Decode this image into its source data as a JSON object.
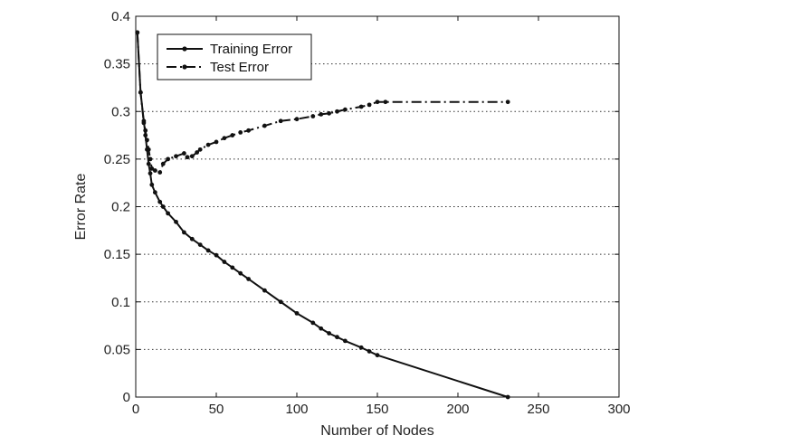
{
  "chart_data": {
    "type": "line",
    "xlabel": "Number of Nodes",
    "ylabel": "Error Rate",
    "xlim": [
      0,
      300
    ],
    "ylim": [
      0,
      0.4
    ],
    "xticks": [
      0,
      50,
      100,
      150,
      200,
      250,
      300
    ],
    "yticks": [
      0,
      0.05,
      0.1,
      0.15,
      0.2,
      0.25,
      0.3,
      0.35,
      0.4
    ],
    "xtick_labels": [
      "0",
      "50",
      "100",
      "150",
      "200",
      "250",
      "300"
    ],
    "ytick_labels": [
      "0",
      "0.05",
      "0.1",
      "0.15",
      "0.2",
      "0.25",
      "0.3",
      "0.35",
      "0.4"
    ],
    "grid": "horizontal dotted",
    "legend_position": "top-left",
    "series": [
      {
        "name": "Training Error",
        "style": "solid",
        "color": "#111111",
        "x": [
          1,
          3,
          5,
          6,
          7,
          8,
          9,
          10,
          12,
          15,
          17,
          20,
          25,
          30,
          35,
          40,
          45,
          50,
          55,
          60,
          65,
          70,
          80,
          90,
          100,
          110,
          115,
          120,
          125,
          130,
          140,
          145,
          150,
          231
        ],
        "y": [
          0.383,
          0.32,
          0.29,
          0.275,
          0.26,
          0.245,
          0.235,
          0.223,
          0.215,
          0.205,
          0.2,
          0.193,
          0.184,
          0.173,
          0.166,
          0.16,
          0.154,
          0.149,
          0.142,
          0.136,
          0.13,
          0.124,
          0.112,
          0.1,
          0.088,
          0.078,
          0.072,
          0.067,
          0.063,
          0.059,
          0.052,
          0.048,
          0.044,
          0.0
        ]
      },
      {
        "name": "Test Error",
        "style": "dash-dot",
        "color": "#111111",
        "x": [
          1,
          3,
          5,
          6,
          7,
          8,
          9,
          10,
          12,
          15,
          17,
          20,
          25,
          30,
          32,
          35,
          38,
          40,
          45,
          50,
          55,
          60,
          65,
          70,
          80,
          90,
          100,
          110,
          115,
          120,
          125,
          130,
          140,
          145,
          150,
          155,
          231
        ],
        "y": [
          0.383,
          0.32,
          0.288,
          0.28,
          0.27,
          0.26,
          0.25,
          0.24,
          0.238,
          0.236,
          0.245,
          0.25,
          0.253,
          0.256,
          0.252,
          0.253,
          0.257,
          0.26,
          0.265,
          0.268,
          0.272,
          0.275,
          0.278,
          0.28,
          0.285,
          0.29,
          0.292,
          0.295,
          0.297,
          0.298,
          0.3,
          0.302,
          0.305,
          0.307,
          0.31,
          0.31,
          0.31
        ]
      }
    ]
  }
}
